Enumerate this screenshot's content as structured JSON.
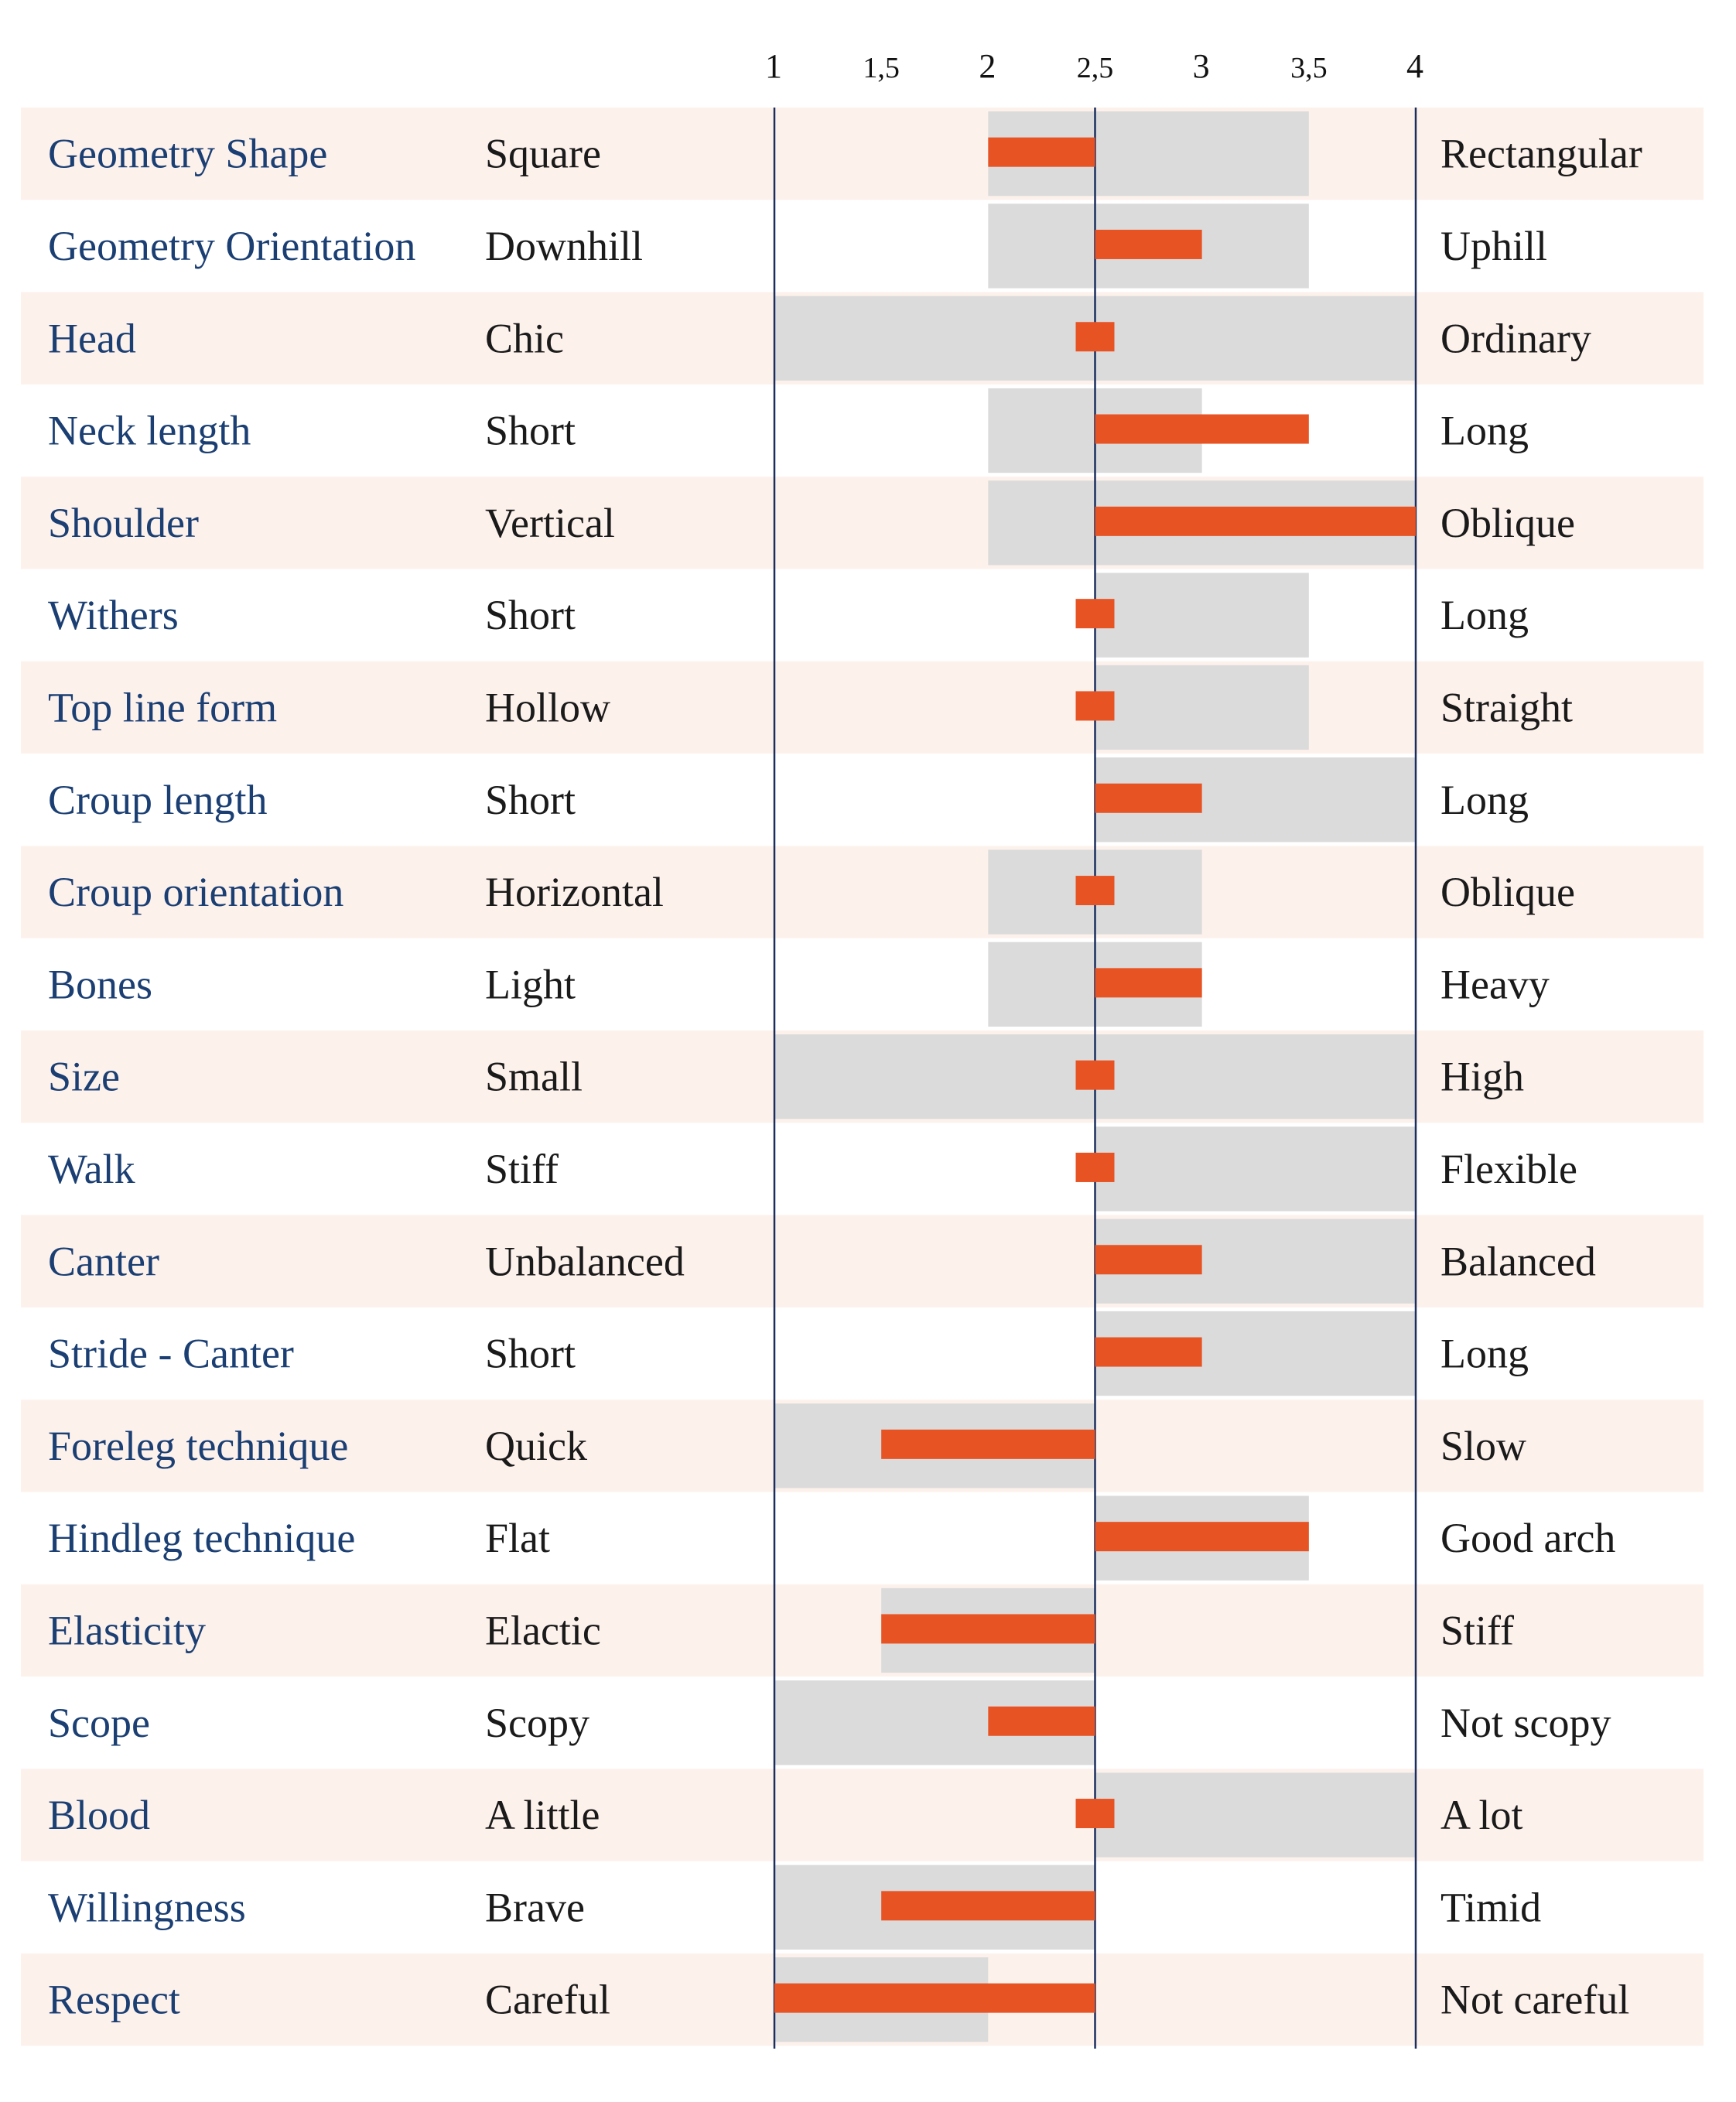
{
  "chart_data": {
    "type": "bar",
    "xlim": [
      1,
      4
    ],
    "reference_value": 2.5,
    "x_ticks": [
      {
        "value": 1,
        "label": "1"
      },
      {
        "value": 1.5,
        "label": "1,5"
      },
      {
        "value": 2,
        "label": "2"
      },
      {
        "value": 2.5,
        "label": "2,5"
      },
      {
        "value": 3,
        "label": "3"
      },
      {
        "value": 3.5,
        "label": "3,5"
      },
      {
        "value": 4,
        "label": "4"
      }
    ],
    "colors": {
      "row_shade": "#fdf1ec",
      "range_bar": "#dbdbdb",
      "value_bar": "#e85324",
      "axis_line": "#1b2f5e",
      "trait_text": "#1b3f73"
    },
    "rows": [
      {
        "trait": "Geometry Shape",
        "low": "Square",
        "high": "Rectangular",
        "range": [
          2,
          3.5
        ],
        "value": 2
      },
      {
        "trait": "Geometry Orientation",
        "low": "Downhill",
        "high": "Uphill",
        "range": [
          2,
          3.5
        ],
        "value": 3
      },
      {
        "trait": "Head",
        "low": "Chic",
        "high": "Ordinary",
        "range": [
          1,
          4
        ],
        "value": 2.5
      },
      {
        "trait": "Neck length",
        "low": "Short",
        "high": "Long",
        "range": [
          2,
          3
        ],
        "value": 3.5
      },
      {
        "trait": "Shoulder",
        "low": "Vertical",
        "high": "Oblique",
        "range": [
          2,
          4
        ],
        "value": 4
      },
      {
        "trait": "Withers",
        "low": "Short",
        "high": "Long",
        "range": [
          2.5,
          3.5
        ],
        "value": 2.5
      },
      {
        "trait": "Top line form",
        "low": "Hollow",
        "high": "Straight",
        "range": [
          2.5,
          3.5
        ],
        "value": 2.5
      },
      {
        "trait": "Croup length",
        "low": "Short",
        "high": "Long",
        "range": [
          2.5,
          4
        ],
        "value": 3
      },
      {
        "trait": "Croup orientation",
        "low": "Horizontal",
        "high": "Oblique",
        "range": [
          2,
          3
        ],
        "value": 2.5
      },
      {
        "trait": "Bones",
        "low": "Light",
        "high": "Heavy",
        "range": [
          2,
          3
        ],
        "value": 3
      },
      {
        "trait": "Size",
        "low": "Small",
        "high": "High",
        "range": [
          1,
          4
        ],
        "value": 2.5
      },
      {
        "trait": "Walk",
        "low": "Stiff",
        "high": "Flexible",
        "range": [
          2.5,
          4
        ],
        "value": 2.5
      },
      {
        "trait": "Canter",
        "low": "Unbalanced",
        "high": "Balanced",
        "range": [
          2.5,
          4
        ],
        "value": 3
      },
      {
        "trait": "Stride - Canter",
        "low": "Short",
        "high": "Long",
        "range": [
          2.5,
          4
        ],
        "value": 3
      },
      {
        "trait": "Foreleg technique",
        "low": "Quick",
        "high": "Slow",
        "range": [
          1,
          2.5
        ],
        "value": 1.5
      },
      {
        "trait": "Hindleg technique",
        "low": "Flat",
        "high": "Good arch",
        "range": [
          2.5,
          3.5
        ],
        "value": 3.5
      },
      {
        "trait": "Elasticity",
        "low": "Elactic",
        "high": "Stiff",
        "range": [
          1.5,
          2.5
        ],
        "value": 1.5
      },
      {
        "trait": "Scope",
        "low": "Scopy",
        "high": "Not scopy",
        "range": [
          1,
          2.5
        ],
        "value": 2
      },
      {
        "trait": "Blood",
        "low": "A little",
        "high": "A lot",
        "range": [
          2.5,
          4
        ],
        "value": 2.5
      },
      {
        "trait": "Willingness",
        "low": "Brave",
        "high": "Timid",
        "range": [
          1,
          2.5
        ],
        "value": 1.5
      },
      {
        "trait": "Respect",
        "low": "Careful",
        "high": "Not careful",
        "range": [
          1,
          2
        ],
        "value": 1
      }
    ]
  }
}
